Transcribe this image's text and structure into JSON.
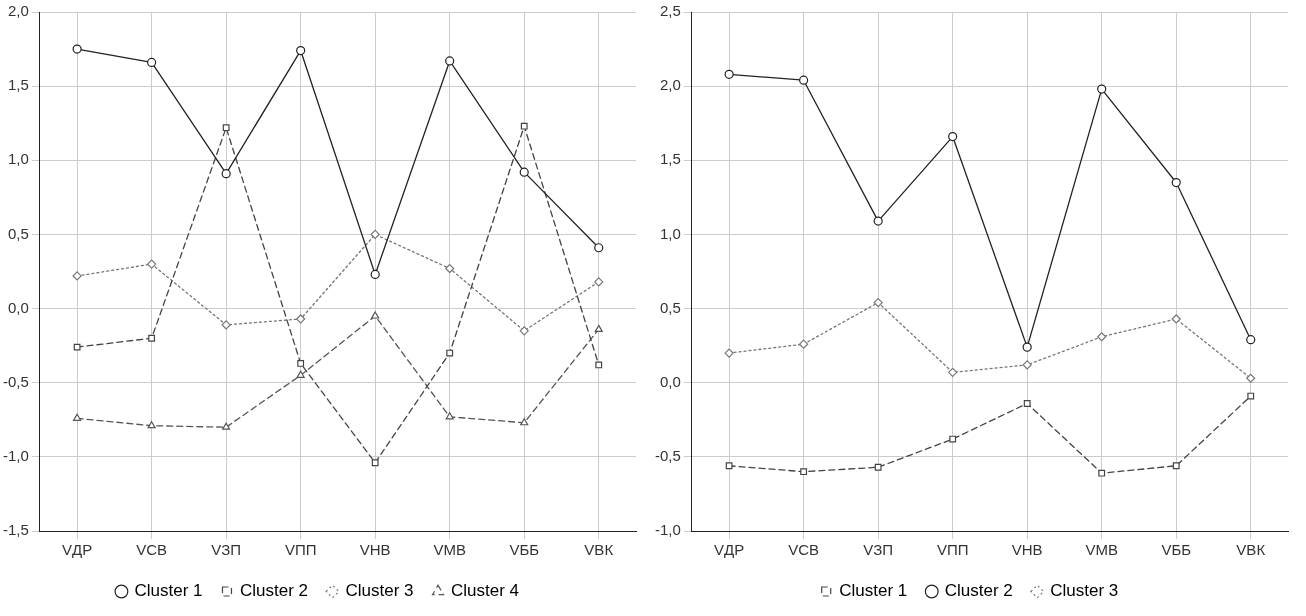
{
  "chart_data": [
    {
      "type": "line",
      "categories": [
        "VДР",
        "VСВ",
        "VЗП",
        "VПП",
        "VНВ",
        "VМВ",
        "VББ",
        "VВК"
      ],
      "series": [
        {
          "name": "Cluster 1",
          "color": "#222222",
          "marker": "circle",
          "line_style": "solid",
          "values": [
            1.75,
            1.66,
            0.91,
            1.74,
            0.23,
            1.67,
            0.92,
            0.41
          ]
        },
        {
          "name": "Cluster 2",
          "color": "#444444",
          "marker": "square",
          "line_style": "dashed",
          "values": [
            -0.26,
            -0.2,
            1.22,
            -0.37,
            -1.04,
            -0.3,
            1.23,
            -0.38
          ]
        },
        {
          "name": "Cluster 3",
          "color": "#777777",
          "marker": "diamond",
          "line_style": "dotted",
          "values": [
            0.22,
            0.3,
            -0.11,
            -0.07,
            0.5,
            0.27,
            -0.15,
            0.18
          ]
        },
        {
          "name": "Cluster 4",
          "color": "#555555",
          "marker": "triangle",
          "line_style": "dashed",
          "values": [
            -0.74,
            -0.79,
            -0.8,
            -0.45,
            -0.05,
            -0.73,
            -0.77,
            -0.14
          ]
        }
      ],
      "ylim": [
        -1.5,
        2
      ],
      "yticks": [
        {
          "value": -1.5,
          "label": "-1,5"
        },
        {
          "value": -1,
          "label": "-1,0"
        },
        {
          "value": -0.5,
          "label": "-0,5"
        },
        {
          "value": 0,
          "label": "0,0"
        },
        {
          "value": 0.5,
          "label": "0,5"
        },
        {
          "value": 1,
          "label": "1,0"
        },
        {
          "value": 1.5,
          "label": "1,5"
        },
        {
          "value": 2,
          "label": "2,0"
        }
      ],
      "grid": true,
      "legend": "bottom"
    },
    {
      "type": "line",
      "categories": [
        "VДР",
        "VСВ",
        "VЗП",
        "VПП",
        "VНВ",
        "VМВ",
        "VББ",
        "VВК"
      ],
      "series": [
        {
          "name": "Cluster 1",
          "color": "#444444",
          "marker": "square",
          "line_style": "dashed",
          "values": [
            -0.56,
            -0.6,
            -0.57,
            -0.38,
            -0.14,
            -0.61,
            -0.56,
            -0.09
          ]
        },
        {
          "name": "Cluster 2",
          "color": "#222222",
          "marker": "circle",
          "line_style": "solid",
          "values": [
            2.08,
            2.04,
            1.09,
            1.66,
            0.24,
            1.98,
            1.35,
            0.29
          ]
        },
        {
          "name": "Cluster 3",
          "color": "#777777",
          "marker": "diamond",
          "line_style": "dotted",
          "values": [
            0.2,
            0.26,
            0.54,
            0.07,
            0.12,
            0.31,
            0.43,
            0.03
          ]
        }
      ],
      "ylim": [
        -1,
        2.5
      ],
      "yticks": [
        {
          "value": -1,
          "label": "-1,0"
        },
        {
          "value": -0.5,
          "label": "-0,5"
        },
        {
          "value": 0,
          "label": "0,0"
        },
        {
          "value": 0.5,
          "label": "0,5"
        },
        {
          "value": 1,
          "label": "1,0"
        },
        {
          "value": 1.5,
          "label": "1,5"
        },
        {
          "value": 2,
          "label": "2,0"
        },
        {
          "value": 2.5,
          "label": "2,5"
        }
      ],
      "grid": true,
      "legend": "bottom"
    }
  ]
}
